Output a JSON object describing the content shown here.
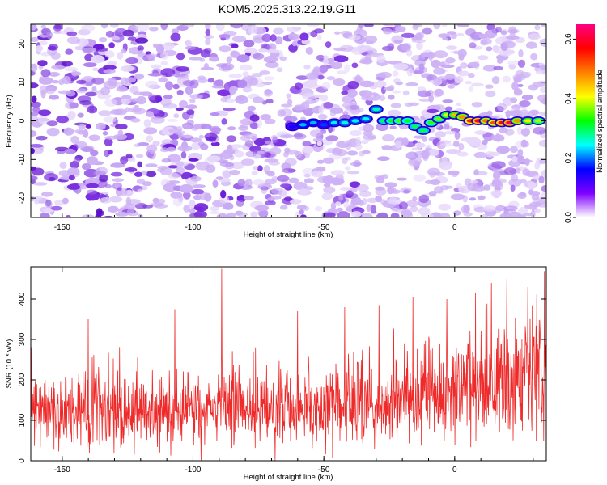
{
  "figure_title": "KOM5.2025.313.22.19.G11",
  "chart_data": [
    {
      "type": "heatmap",
      "panel": "spectrogram",
      "xlabel": "Height of straight line (km)",
      "ylabel": "Frequency (Hz)",
      "xlim": [
        -162,
        35
      ],
      "ylim": [
        -25,
        25
      ],
      "xticks": [
        -150,
        -100,
        -50,
        0
      ],
      "xtick_labels": [
        "-150",
        "-100",
        "-50",
        "0"
      ],
      "yticks": [
        -20,
        -10,
        0,
        10,
        20
      ],
      "ytick_labels": [
        "-20",
        "-10",
        "0",
        "10",
        "20"
      ],
      "colorbar": {
        "label": "Normalized spectral amplitude",
        "range": [
          0.0,
          0.65
        ],
        "ticks": [
          0.0,
          0.2,
          0.4,
          0.6
        ],
        "tick_labels": [
          "0.0",
          "0.2",
          "0.4",
          "0.6"
        ],
        "colormap": [
          "#ffffff",
          "#7f00ff",
          "#0000ff",
          "#00ffff",
          "#00ff00",
          "#ffff00",
          "#ff8000",
          "#ff0000",
          "#ff0080"
        ]
      },
      "signal_trace": [
        {
          "x": -62,
          "y": -1.5,
          "amp": 0.15
        },
        {
          "x": -58,
          "y": -1,
          "amp": 0.22
        },
        {
          "x": -54,
          "y": -0.5,
          "amp": 0.22
        },
        {
          "x": -50,
          "y": -1,
          "amp": 0.18
        },
        {
          "x": -46,
          "y": -0.5,
          "amp": 0.24
        },
        {
          "x": -42,
          "y": -0.5,
          "amp": 0.26
        },
        {
          "x": -38,
          "y": 0,
          "amp": 0.24
        },
        {
          "x": -34,
          "y": 0.5,
          "amp": 0.25
        },
        {
          "x": -30,
          "y": 3,
          "amp": 0.27
        },
        {
          "x": -27,
          "y": 0,
          "amp": 0.3
        },
        {
          "x": -24,
          "y": 0,
          "amp": 0.32
        },
        {
          "x": -21,
          "y": 0,
          "amp": 0.35
        },
        {
          "x": -18,
          "y": 0,
          "amp": 0.32
        },
        {
          "x": -15,
          "y": -1.5,
          "amp": 0.3
        },
        {
          "x": -12,
          "y": -2.5,
          "amp": 0.3
        },
        {
          "x": -9,
          "y": -0.5,
          "amp": 0.34
        },
        {
          "x": -6,
          "y": 0.5,
          "amp": 0.36
        },
        {
          "x": -3,
          "y": 1.5,
          "amp": 0.4
        },
        {
          "x": 0,
          "y": 1.5,
          "amp": 0.45
        },
        {
          "x": 3,
          "y": 1,
          "amp": 0.48
        },
        {
          "x": 6,
          "y": 0,
          "amp": 0.55
        },
        {
          "x": 9,
          "y": 0,
          "amp": 0.6
        },
        {
          "x": 12,
          "y": 0,
          "amp": 0.5
        },
        {
          "x": 15,
          "y": -0.5,
          "amp": 0.52
        },
        {
          "x": 18,
          "y": -0.5,
          "amp": 0.58
        },
        {
          "x": 21,
          "y": -0.5,
          "amp": 0.62
        },
        {
          "x": 24,
          "y": 0,
          "amp": 0.48
        },
        {
          "x": 28,
          "y": 0,
          "amp": 0.42
        },
        {
          "x": 32,
          "y": 0,
          "amp": 0.38
        }
      ]
    },
    {
      "type": "line",
      "panel": "snr",
      "xlabel": "Height of straight line (km)",
      "ylabel": "SNR (10 * v/v)",
      "xlim": [
        -162,
        35
      ],
      "ylim": [
        0,
        480
      ],
      "xticks": [
        -150,
        -100,
        -50,
        0
      ],
      "xtick_labels": [
        "-150",
        "-100",
        "-50",
        "0"
      ],
      "yticks": [
        0,
        100,
        200,
        300,
        400
      ],
      "ytick_labels": [
        "0",
        "100",
        "200",
        "300",
        "400"
      ],
      "series": [
        {
          "name": "SNR",
          "color": "#ee2a2a",
          "baseline": [
            {
              "x": -162,
              "y": 125
            },
            {
              "x": -100,
              "y": 120
            },
            {
              "x": -50,
              "y": 125
            },
            {
              "x": -20,
              "y": 145
            },
            {
              "x": 0,
              "y": 165
            },
            {
              "x": 35,
              "y": 205
            }
          ],
          "spikes": [
            {
              "x": -89,
              "y": 475
            },
            {
              "x": -107,
              "y": 375
            },
            {
              "x": -16,
              "y": 405
            },
            {
              "x": -29,
              "y": 385
            },
            {
              "x": 8,
              "y": 415
            },
            {
              "x": 20,
              "y": 450
            },
            {
              "x": 28,
              "y": 430
            },
            {
              "x": 14,
              "y": 440
            },
            {
              "x": -60,
              "y": 370
            },
            {
              "x": -140,
              "y": 350
            },
            {
              "x": -42,
              "y": 380
            },
            {
              "x": -3,
              "y": 400
            }
          ]
        }
      ]
    }
  ]
}
